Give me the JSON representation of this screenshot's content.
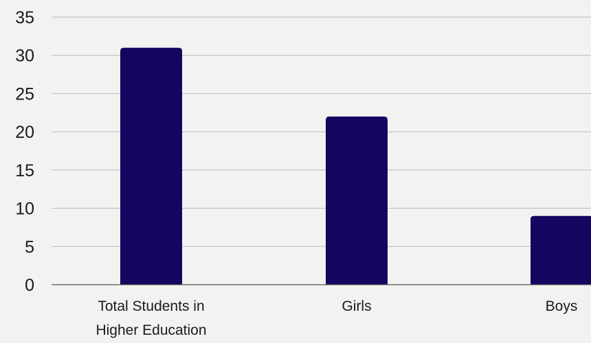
{
  "chart_data": {
    "type": "bar",
    "categories": [
      [
        "Total Students in",
        "Higher Education"
      ],
      [
        "Girls"
      ],
      [
        "Boys"
      ]
    ],
    "values": [
      31,
      22,
      9
    ],
    "ylim": [
      0,
      35
    ],
    "yticks": [
      0,
      5,
      10,
      15,
      20,
      25,
      30,
      35
    ],
    "grid": true,
    "legend": "none",
    "bar_color": "#120660"
  }
}
